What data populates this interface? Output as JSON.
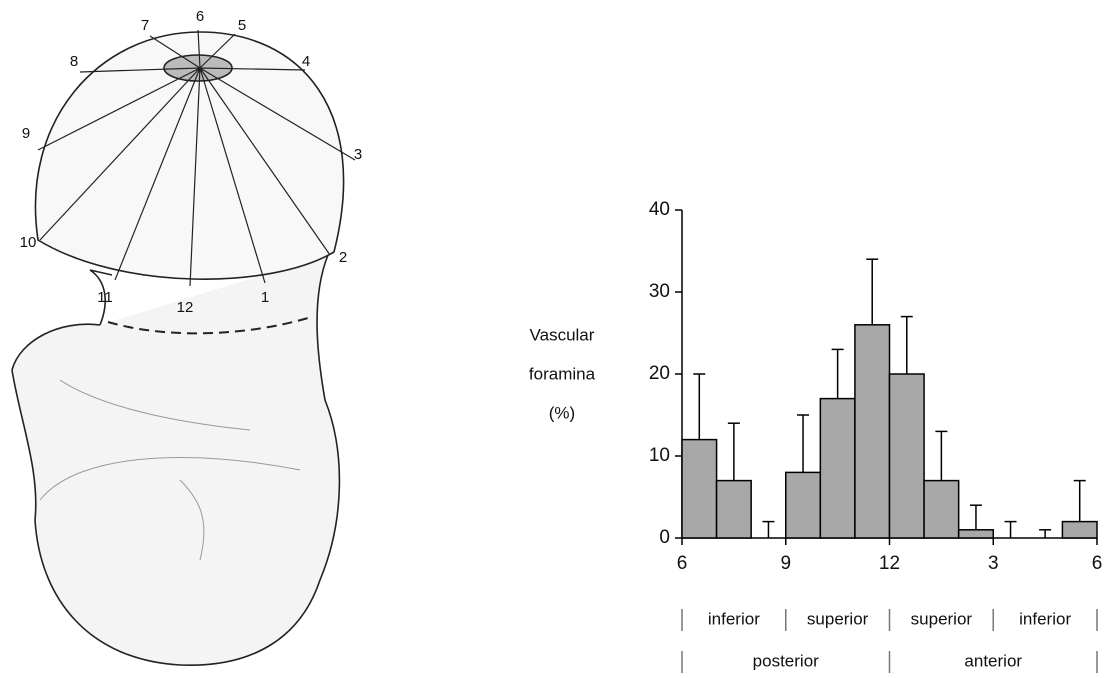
{
  "illustration": {
    "clock_labels": [
      "1",
      "2",
      "3",
      "4",
      "5",
      "6",
      "7",
      "8",
      "9",
      "10",
      "11",
      "12"
    ]
  },
  "chart_data": {
    "type": "bar",
    "ylabel": [
      "Vascular",
      "foramina",
      "(%)"
    ],
    "categories": [
      null,
      null,
      null,
      null,
      null,
      null,
      null,
      null,
      null,
      null,
      null,
      null
    ],
    "values": [
      12,
      7,
      0,
      8,
      17,
      26,
      20,
      7,
      1,
      0,
      0,
      2
    ],
    "errors": [
      8,
      7,
      2,
      7,
      6,
      8,
      7,
      6,
      3,
      2,
      1,
      5
    ],
    "color": "#a8a8a8",
    "xlim": [
      0,
      12
    ],
    "xticks": [
      {
        "value": 0,
        "label": "6"
      },
      {
        "value": 3,
        "label": "9"
      },
      {
        "value": 6,
        "label": "12"
      },
      {
        "value": 9,
        "label": "3"
      },
      {
        "value": 12,
        "label": "6"
      }
    ],
    "ylim": [
      0,
      40
    ],
    "yticks": [
      0,
      10,
      20,
      30,
      40
    ],
    "region_labels": [
      "inferior",
      "superior",
      "superior",
      "inferior"
    ],
    "side_labels": [
      "posterior",
      "anterior"
    ]
  }
}
